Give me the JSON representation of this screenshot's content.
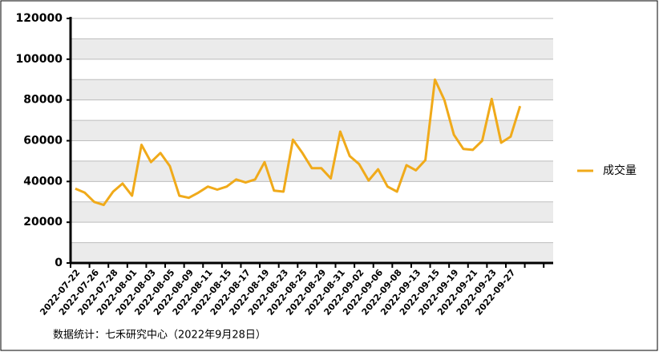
{
  "chart_data": {
    "type": "line",
    "categories": [
      "2022-07-22",
      null,
      "2022-07-26",
      null,
      "2022-07-28",
      null,
      "2022-08-01",
      null,
      "2022-08-03",
      null,
      "2022-08-05",
      null,
      "2022-08-09",
      null,
      "2022-08-11",
      null,
      "2022-08-15",
      null,
      "2022-08-17",
      null,
      "2022-08-19",
      null,
      "2022-08-23",
      null,
      "2022-08-25",
      null,
      "2022-08-29",
      null,
      "2022-08-31",
      null,
      "2022-09-02",
      null,
      "2022-09-06",
      null,
      "2022-09-08",
      null,
      "2022-09-13",
      null,
      "2022-09-15",
      null,
      "2022-09-19",
      null,
      "2022-09-21",
      null,
      "2022-09-23",
      null,
      "2022-09-27",
      null
    ],
    "series": [
      {
        "name": "成交量",
        "color": "#f0aa1a",
        "values": [
          36500,
          34500,
          30000,
          28500,
          35000,
          39000,
          33000,
          58000,
          49500,
          54000,
          47500,
          33000,
          32000,
          34500,
          37500,
          36000,
          37500,
          41000,
          39500,
          41000,
          49500,
          35500,
          35000,
          60500,
          54000,
          46500,
          46500,
          41500,
          64500,
          52500,
          48500,
          40500,
          46000,
          37500,
          35000,
          48000,
          45500,
          50500,
          90000,
          80000,
          63000,
          56000,
          55500,
          60000,
          80500,
          59000,
          62000,
          77000
        ]
      }
    ],
    "ylim": [
      0,
      120000
    ],
    "yticks": [
      0,
      20000,
      40000,
      60000,
      80000,
      100000,
      120000
    ],
    "grid": true,
    "legend": "right",
    "source": "数据统计：七禾研究中心（2022年9月28日）"
  }
}
